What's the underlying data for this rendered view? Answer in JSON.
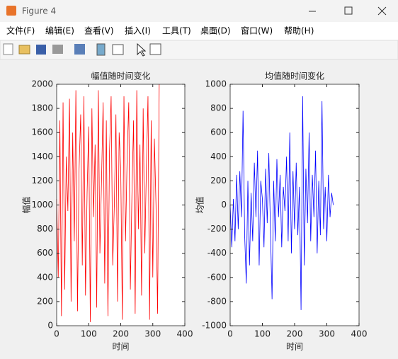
{
  "window": {
    "title": "Figure 4"
  },
  "menu": [
    "文件(F)",
    "编辑(E)",
    "查看(V)",
    "插入(I)",
    "工具(T)",
    "桌面(D)",
    "窗口(W)",
    "帮助(H)"
  ],
  "chart_data": [
    {
      "type": "line",
      "title": "幅值随时间变化",
      "xlabel": "时间",
      "ylabel": "幅值",
      "x": [
        0,
        5,
        10,
        15,
        20,
        25,
        30,
        35,
        40,
        45,
        50,
        55,
        60,
        65,
        70,
        75,
        80,
        85,
        90,
        95,
        100,
        105,
        110,
        115,
        120,
        125,
        130,
        135,
        140,
        145,
        150,
        155,
        160,
        165,
        170,
        175,
        180,
        185,
        190,
        195,
        200,
        205,
        210,
        215,
        220,
        225,
        230,
        235,
        240,
        245,
        250,
        255,
        260,
        265,
        270,
        275,
        280,
        285,
        290,
        295,
        300,
        305,
        310,
        315,
        320
      ],
      "series": [
        {
          "color": "#ff0000",
          "values": [
            1050,
            400,
            1700,
            80,
            1850,
            300,
            1400,
            950,
            1880,
            200,
            1600,
            700,
            1950,
            120,
            1300,
            1750,
            500,
            1900,
            250,
            1100,
            1650,
            30,
            1800,
            900,
            1500,
            150,
            1950,
            600,
            1200,
            1850,
            350,
            1700,
            80,
            1450,
            1900,
            500,
            1000,
            1750,
            200,
            1600,
            1300,
            50,
            1900,
            700,
            1400,
            1850,
            300,
            1100,
            1700,
            100,
            1950,
            800,
            1500,
            250,
            1800,
            600,
            1300,
            1900,
            50,
            1700,
            400,
            1550,
            1000,
            100,
            2000
          ]
        }
      ],
      "xlim": [
        0,
        400
      ],
      "ylim": [
        0,
        2000
      ],
      "xticks": [
        0,
        100,
        200,
        300,
        400
      ],
      "yticks": [
        0,
        200,
        400,
        600,
        800,
        1000,
        1200,
        1400,
        1600,
        1800,
        2000
      ]
    },
    {
      "type": "line",
      "title": "均值随时间变化",
      "xlabel": "时间",
      "ylabel": "均值",
      "x": [
        0,
        5,
        10,
        15,
        20,
        25,
        30,
        35,
        40,
        45,
        50,
        55,
        60,
        65,
        70,
        75,
        80,
        85,
        90,
        95,
        100,
        105,
        110,
        115,
        120,
        125,
        130,
        135,
        140,
        145,
        150,
        155,
        160,
        165,
        170,
        175,
        180,
        185,
        190,
        195,
        200,
        205,
        210,
        215,
        220,
        225,
        230,
        235,
        240,
        245,
        250,
        255,
        260,
        265,
        270,
        275,
        280,
        285,
        290,
        295,
        300,
        305,
        310,
        315,
        320
      ],
      "series": [
        {
          "color": "#0000ff",
          "values": [
            0,
            -350,
            50,
            -300,
            250,
            -200,
            280,
            -100,
            780,
            -250,
            -650,
            200,
            -500,
            100,
            -300,
            350,
            -100,
            450,
            -500,
            200,
            50,
            -350,
            300,
            -150,
            430,
            -200,
            -780,
            200,
            -300,
            380,
            -100,
            250,
            -350,
            150,
            -50,
            400,
            -300,
            600,
            -400,
            280,
            -200,
            350,
            -250,
            150,
            -870,
            900,
            -500,
            300,
            -150,
            600,
            -300,
            250,
            -100,
            450,
            -400,
            200,
            -250,
            860,
            -200,
            150,
            -300,
            250,
            -100,
            100,
            0
          ]
        }
      ],
      "xlim": [
        0,
        400
      ],
      "ylim": [
        -1000,
        1000
      ],
      "xticks": [
        0,
        100,
        200,
        300,
        400
      ],
      "yticks": [
        -1000,
        -800,
        -600,
        -400,
        -200,
        0,
        200,
        400,
        600,
        800,
        1000
      ]
    }
  ]
}
